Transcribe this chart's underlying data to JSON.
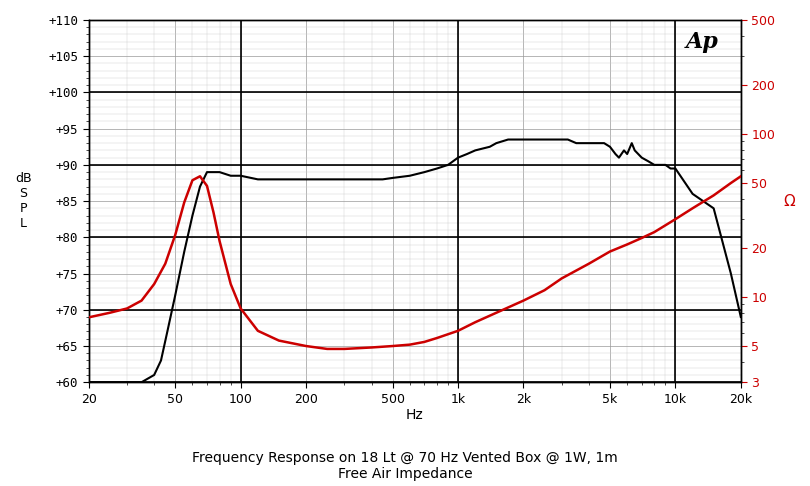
{
  "title_line1": "Frequency Response on 18 Lt @ 70 Hz Vented Box @ 1W, 1m",
  "title_line2": "Free Air Impedance",
  "xlabel": "Hz",
  "ap_logo": "Ap",
  "freq_min": 20,
  "freq_max": 20000,
  "spl_min": 60,
  "spl_max": 110,
  "imp_min": 3,
  "imp_max": 500,
  "spl_yticks": [
    60,
    65,
    70,
    75,
    80,
    85,
    90,
    95,
    100,
    105,
    110
  ],
  "spl_major_ticks": [
    60,
    70,
    80,
    90,
    100,
    110
  ],
  "imp_yticks": [
    3,
    5,
    10,
    20,
    50,
    100,
    200,
    500
  ],
  "freq_xticks": [
    20,
    50,
    100,
    200,
    500,
    1000,
    2000,
    5000,
    10000,
    20000
  ],
  "freq_xticklabels": [
    "20",
    "50",
    "100",
    "200",
    "500",
    "1k",
    "2k",
    "5k",
    "10k",
    "20k"
  ],
  "background_color": "#ffffff",
  "grid_minor_color": "#cccccc",
  "grid_major_color": "#999999",
  "spl_line_color": "#000000",
  "imp_line_color": "#cc0000",
  "bold_line_color": "#000000",
  "spl_data": {
    "freq": [
      20,
      25,
      30,
      35,
      40,
      43,
      46,
      50,
      55,
      60,
      65,
      70,
      75,
      80,
      90,
      100,
      120,
      150,
      200,
      250,
      300,
      350,
      400,
      450,
      500,
      600,
      700,
      800,
      900,
      1000,
      1100,
      1200,
      1400,
      1500,
      1700,
      2000,
      2200,
      2500,
      2700,
      3000,
      3200,
      3500,
      3700,
      4000,
      4200,
      4500,
      4700,
      5000,
      5300,
      5500,
      5800,
      6000,
      6300,
      6500,
      7000,
      7500,
      8000,
      8500,
      9000,
      9500,
      10000,
      12000,
      15000,
      18000,
      20000
    ],
    "spl": [
      60,
      60,
      60,
      60,
      61,
      63,
      67,
      72,
      78,
      83,
      87,
      89,
      89,
      89,
      88.5,
      88.5,
      88,
      88,
      88,
      88,
      88,
      88,
      88,
      88,
      88.2,
      88.5,
      89,
      89.5,
      90,
      91,
      91.5,
      92,
      92.5,
      93,
      93.5,
      93.5,
      93.5,
      93.5,
      93.5,
      93.5,
      93.5,
      93,
      93,
      93,
      93,
      93,
      93,
      92.5,
      91.5,
      91,
      92,
      91.5,
      93,
      92,
      91,
      90.5,
      90,
      90,
      90,
      89.5,
      89.5,
      86,
      84,
      75,
      69
    ]
  },
  "imp_data": {
    "freq": [
      20,
      25,
      30,
      35,
      40,
      45,
      50,
      55,
      60,
      65,
      70,
      75,
      80,
      90,
      100,
      120,
      150,
      200,
      250,
      300,
      400,
      500,
      600,
      700,
      800,
      1000,
      1200,
      1500,
      2000,
      2500,
      3000,
      4000,
      5000,
      6000,
      7000,
      8000,
      10000,
      12000,
      15000,
      18000,
      20000
    ],
    "imp": [
      7.5,
      8,
      8.5,
      9.5,
      12,
      16,
      24,
      38,
      52,
      55,
      48,
      33,
      22,
      12,
      8.5,
      6.2,
      5.4,
      5.0,
      4.8,
      4.8,
      4.9,
      5.0,
      5.1,
      5.3,
      5.6,
      6.2,
      7.0,
      8.0,
      9.5,
      11,
      13,
      16,
      19,
      21,
      23,
      25,
      30,
      35,
      42,
      50,
      55
    ]
  }
}
